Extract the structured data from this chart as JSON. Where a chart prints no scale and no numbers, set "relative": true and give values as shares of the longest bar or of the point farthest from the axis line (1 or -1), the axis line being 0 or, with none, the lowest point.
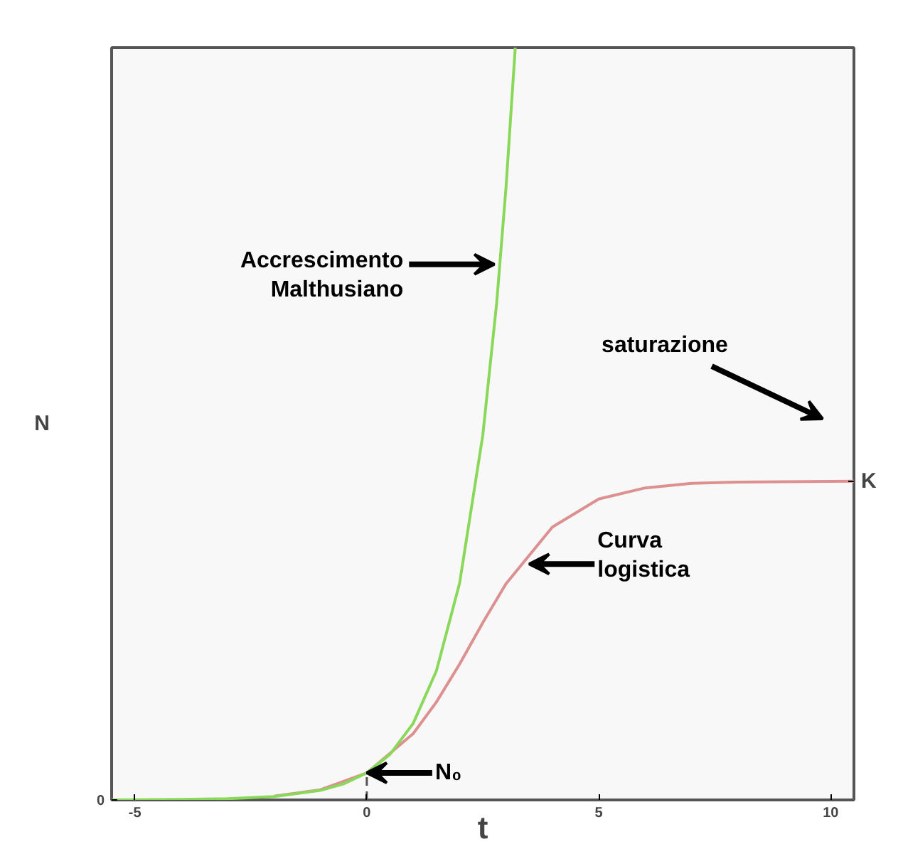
{
  "chart_data": {
    "type": "line",
    "xlabel": "t",
    "ylabel": "N",
    "relative": true,
    "xlim": [
      -5.5,
      10.5
    ],
    "xticks": [
      -5,
      0,
      5,
      10
    ],
    "series": [
      {
        "color": "#8ad85a",
        "x": [
          -5.5,
          -4,
          -3,
          -2,
          -1,
          -0.5,
          0,
          0.5,
          1,
          1.5,
          2,
          2.5,
          2.8,
          3,
          3.2
        ],
        "values": [
          0,
          0.0006,
          0.0016,
          0.0045,
          0.0127,
          0.0214,
          0.036,
          0.0606,
          0.1017,
          0.1716,
          0.2881,
          0.4847,
          0.661,
          0.8136,
          1
        ]
      },
      {
        "color": "#dc9090",
        "x": [
          -2,
          -1,
          0,
          1,
          1.5,
          2,
          2.5,
          3,
          4,
          5,
          6,
          7,
          8,
          10.5
        ],
        "values": [
          0.0049,
          0.0135,
          0.036,
          0.0881,
          0.1301,
          0.1805,
          0.2356,
          0.2873,
          0.3627,
          0.4,
          0.4148,
          0.4208,
          0.4225,
          0.4237
        ]
      },
      {
        "type": "line",
        "color": "#555555",
        "line_style": "dashed",
        "x": [
          0,
          0
        ],
        "values": [
          0,
          0.036
        ]
      }
    ],
    "annotations": [
      {
        "text": "Accrescimento\nMalthusiano",
        "x": 2.75,
        "y": 0.712
      },
      "saturazione",
      {
        "text": "Curva\nlogistica",
        "x": 3.5,
        "y": 0.3136
      },
      {
        "text": "N₀",
        "x": 0,
        "y": 0.036
      },
      {
        "text": "0",
        "x": -5.5,
        "y": 0
      },
      {
        "text": "K",
        "x": 10.5,
        "y": 0.4237
      }
    ],
    "grid": false,
    "marker": "none",
    "line_style": "solid"
  }
}
